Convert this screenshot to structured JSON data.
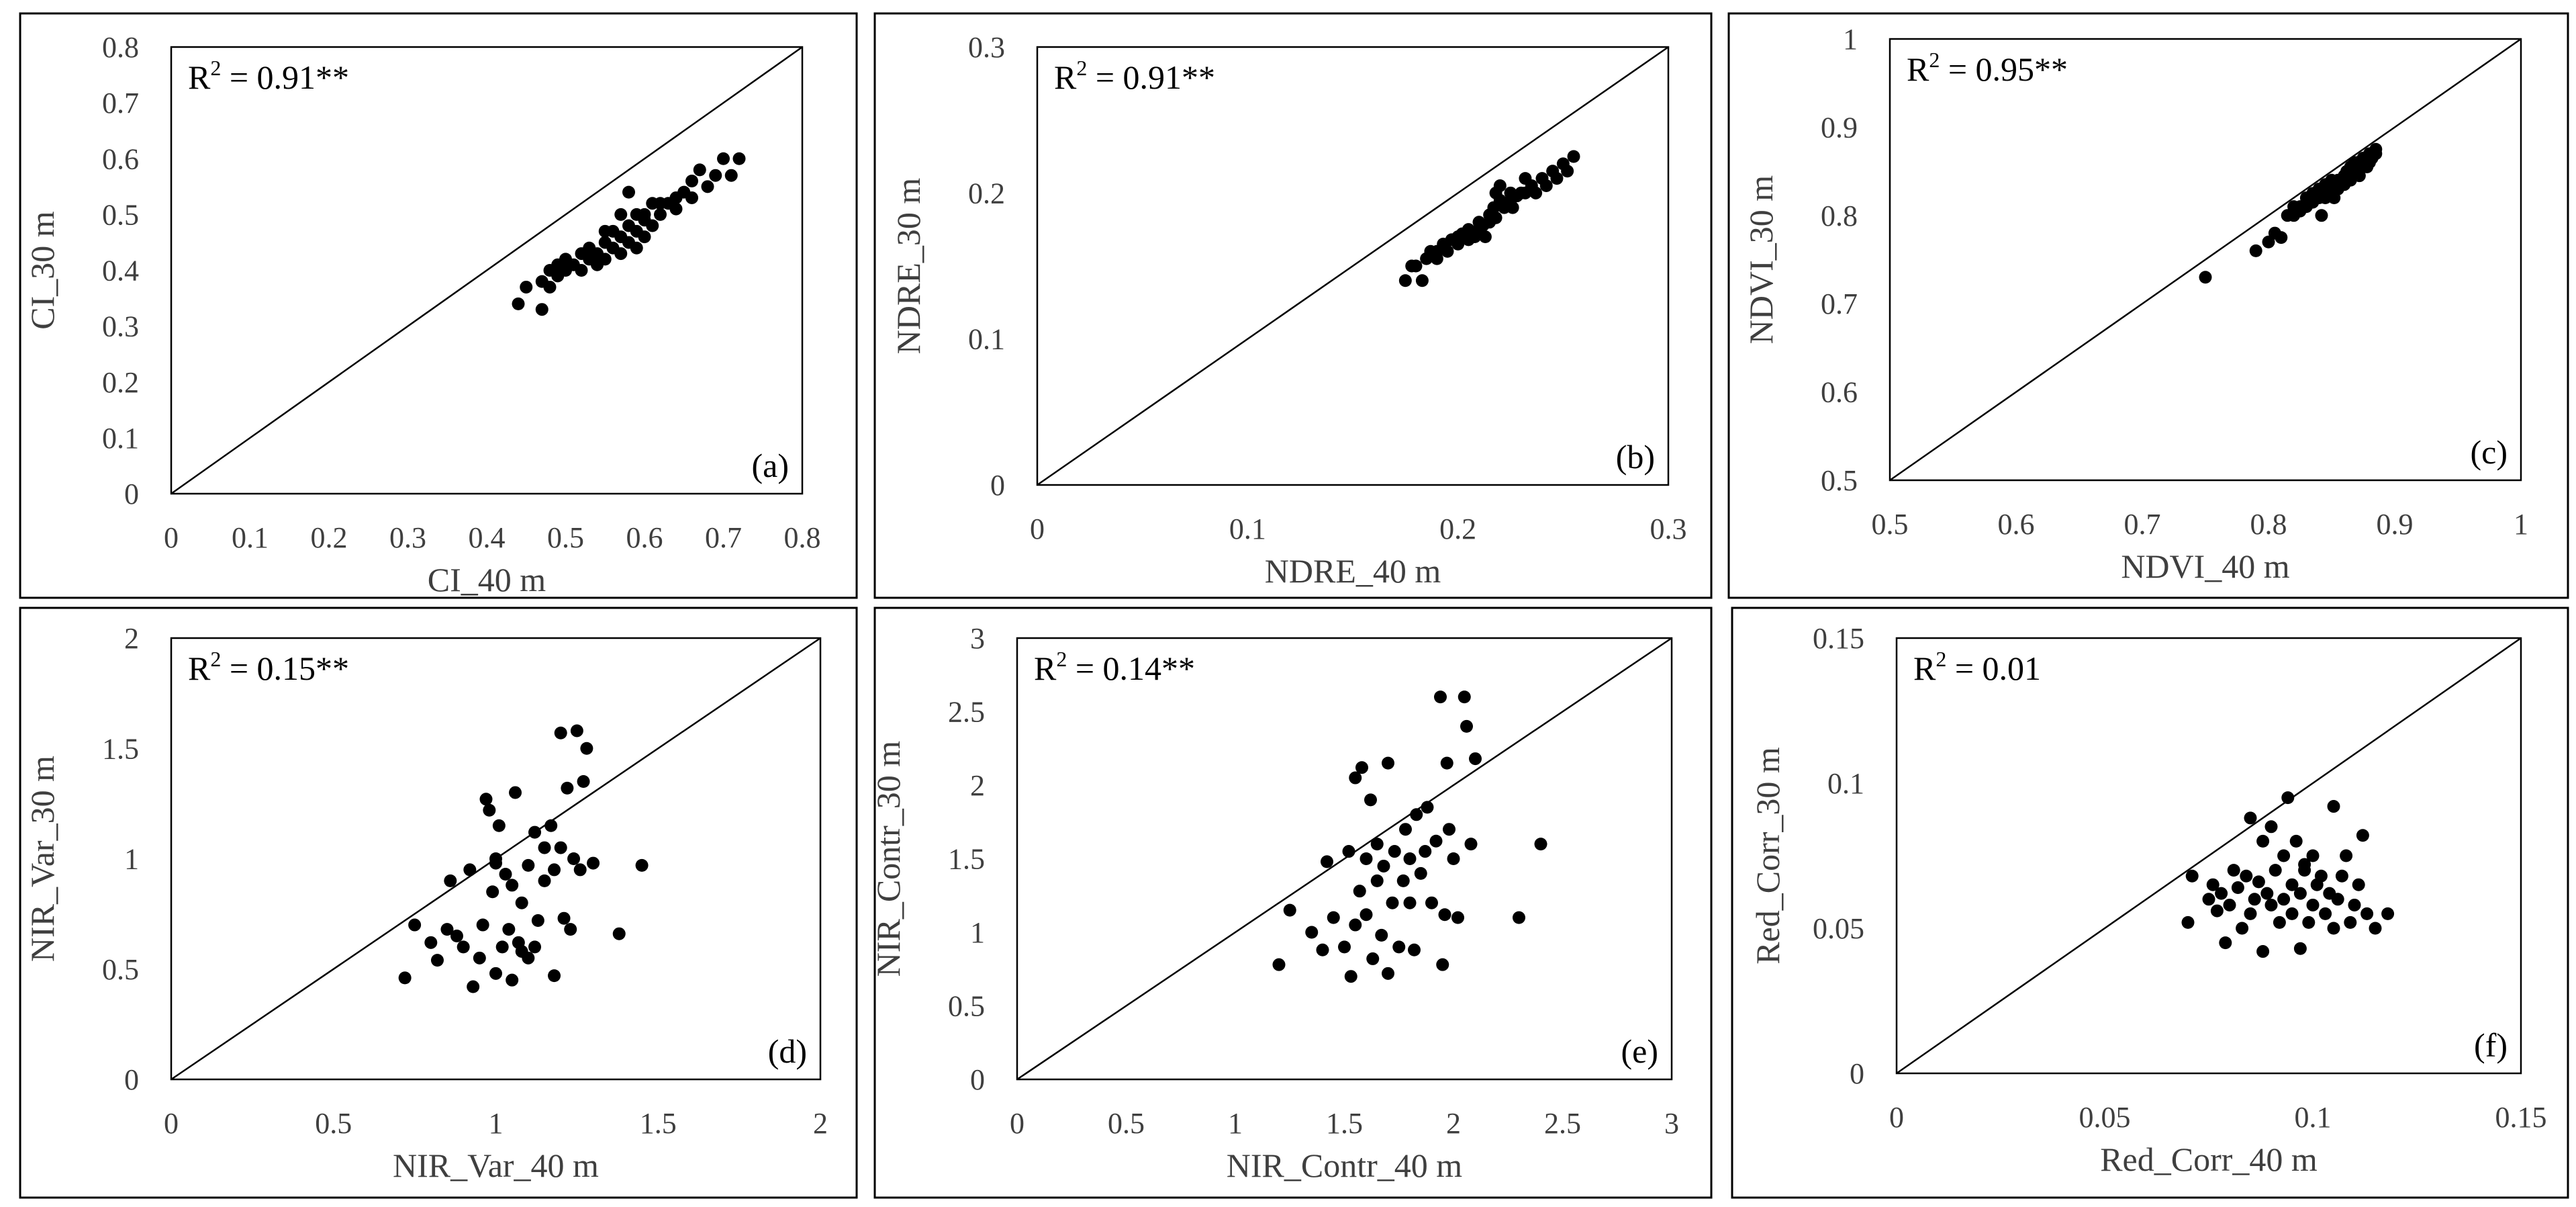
{
  "chart_data": [
    {
      "type": "scatter",
      "panel": "(a)",
      "xlabel": "CI_40 m",
      "ylabel": "CI_30 m",
      "xlim": [
        0,
        0.8
      ],
      "ylim": [
        0,
        0.8
      ],
      "xticks": [
        "0",
        "0.1",
        "0.2",
        "0.3",
        "0.4",
        "0.5",
        "0.6",
        "0.7",
        "0.8"
      ],
      "yticks": [
        "0",
        "0.1",
        "0.2",
        "0.3",
        "0.4",
        "0.5",
        "0.6",
        "0.7",
        "0.8"
      ],
      "r2": {
        "prefix": "R",
        "sup": "2",
        "value": " = 0.91**"
      },
      "one_to_one_line": true,
      "points": [
        [
          0.44,
          0.34
        ],
        [
          0.45,
          0.37
        ],
        [
          0.47,
          0.33
        ],
        [
          0.47,
          0.38
        ],
        [
          0.48,
          0.4
        ],
        [
          0.48,
          0.37
        ],
        [
          0.49,
          0.41
        ],
        [
          0.49,
          0.39
        ],
        [
          0.5,
          0.42
        ],
        [
          0.5,
          0.4
        ],
        [
          0.51,
          0.41
        ],
        [
          0.52,
          0.43
        ],
        [
          0.52,
          0.4
        ],
        [
          0.53,
          0.42
        ],
        [
          0.53,
          0.44
        ],
        [
          0.54,
          0.41
        ],
        [
          0.54,
          0.43
        ],
        [
          0.55,
          0.45
        ],
        [
          0.55,
          0.42
        ],
        [
          0.56,
          0.44
        ],
        [
          0.56,
          0.47
        ],
        [
          0.57,
          0.43
        ],
        [
          0.57,
          0.46
        ],
        [
          0.58,
          0.48
        ],
        [
          0.58,
          0.45
        ],
        [
          0.58,
          0.54
        ],
        [
          0.59,
          0.47
        ],
        [
          0.59,
          0.5
        ],
        [
          0.6,
          0.46
        ],
        [
          0.6,
          0.49
        ],
        [
          0.61,
          0.52
        ],
        [
          0.61,
          0.48
        ],
        [
          0.62,
          0.5
        ],
        [
          0.63,
          0.52
        ],
        [
          0.64,
          0.53
        ],
        [
          0.64,
          0.51
        ],
        [
          0.65,
          0.54
        ],
        [
          0.66,
          0.53
        ],
        [
          0.66,
          0.56
        ],
        [
          0.67,
          0.58
        ],
        [
          0.68,
          0.55
        ],
        [
          0.69,
          0.57
        ],
        [
          0.7,
          0.6
        ],
        [
          0.71,
          0.57
        ],
        [
          0.72,
          0.6
        ],
        [
          0.59,
          0.44
        ],
        [
          0.6,
          0.5
        ],
        [
          0.62,
          0.52
        ],
        [
          0.55,
          0.47
        ],
        [
          0.57,
          0.5
        ]
      ]
    },
    {
      "type": "scatter",
      "panel": "(b)",
      "xlabel": "NDRE_40 m",
      "ylabel": "NDRE_30 m",
      "xlim": [
        0,
        0.3
      ],
      "ylim": [
        0,
        0.3
      ],
      "xticks": [
        "0",
        "0.1",
        "0.2",
        "0.3"
      ],
      "yticks": [
        "0",
        "0.1",
        "0.2",
        "0.3"
      ],
      "r2": {
        "prefix": "R",
        "sup": "2",
        "value": " = 0.91**"
      },
      "one_to_one_line": true,
      "points": [
        [
          0.175,
          0.14
        ],
        [
          0.178,
          0.15
        ],
        [
          0.18,
          0.15
        ],
        [
          0.183,
          0.14
        ],
        [
          0.185,
          0.155
        ],
        [
          0.187,
          0.16
        ],
        [
          0.19,
          0.16
        ],
        [
          0.19,
          0.155
        ],
        [
          0.193,
          0.165
        ],
        [
          0.195,
          0.16
        ],
        [
          0.197,
          0.168
        ],
        [
          0.2,
          0.165
        ],
        [
          0.2,
          0.17
        ],
        [
          0.202,
          0.172
        ],
        [
          0.205,
          0.168
        ],
        [
          0.205,
          0.175
        ],
        [
          0.208,
          0.17
        ],
        [
          0.21,
          0.175
        ],
        [
          0.21,
          0.18
        ],
        [
          0.212,
          0.178
        ],
        [
          0.215,
          0.18
        ],
        [
          0.215,
          0.185
        ],
        [
          0.217,
          0.19
        ],
        [
          0.218,
          0.183
        ],
        [
          0.22,
          0.195
        ],
        [
          0.22,
          0.205
        ],
        [
          0.222,
          0.19
        ],
        [
          0.225,
          0.195
        ],
        [
          0.225,
          0.2
        ],
        [
          0.228,
          0.198
        ],
        [
          0.23,
          0.2
        ],
        [
          0.232,
          0.2
        ],
        [
          0.235,
          0.205
        ],
        [
          0.237,
          0.2
        ],
        [
          0.24,
          0.21
        ],
        [
          0.242,
          0.205
        ],
        [
          0.245,
          0.215
        ],
        [
          0.247,
          0.21
        ],
        [
          0.25,
          0.22
        ],
        [
          0.252,
          0.215
        ],
        [
          0.255,
          0.225
        ],
        [
          0.213,
          0.17
        ],
        [
          0.218,
          0.2
        ],
        [
          0.226,
          0.19
        ],
        [
          0.232,
          0.21
        ]
      ]
    },
    {
      "type": "scatter",
      "panel": "(c)",
      "xlabel": "NDVI_40 m",
      "ylabel": "NDVI_30 m",
      "xlim": [
        0.5,
        1
      ],
      "ylim": [
        0.5,
        1
      ],
      "xticks": [
        "0.5",
        "0.6",
        "0.7",
        "0.8",
        "0.9",
        "1"
      ],
      "yticks": [
        "0.5",
        "0.6",
        "0.7",
        "0.8",
        "0.9",
        "1"
      ],
      "r2": {
        "prefix": "R",
        "sup": "2",
        "value": " = 0.95**"
      },
      "one_to_one_line": true,
      "points": [
        [
          0.75,
          0.73
        ],
        [
          0.79,
          0.76
        ],
        [
          0.8,
          0.77
        ],
        [
          0.805,
          0.78
        ],
        [
          0.81,
          0.775
        ],
        [
          0.815,
          0.8
        ],
        [
          0.82,
          0.81
        ],
        [
          0.82,
          0.8
        ],
        [
          0.825,
          0.805
        ],
        [
          0.83,
          0.81
        ],
        [
          0.83,
          0.82
        ],
        [
          0.835,
          0.815
        ],
        [
          0.835,
          0.825
        ],
        [
          0.84,
          0.83
        ],
        [
          0.84,
          0.82
        ],
        [
          0.842,
          0.8
        ],
        [
          0.845,
          0.835
        ],
        [
          0.845,
          0.825
        ],
        [
          0.85,
          0.84
        ],
        [
          0.85,
          0.83
        ],
        [
          0.852,
          0.82
        ],
        [
          0.855,
          0.84
        ],
        [
          0.86,
          0.845
        ],
        [
          0.86,
          0.835
        ],
        [
          0.862,
          0.85
        ],
        [
          0.865,
          0.84
        ],
        [
          0.865,
          0.855
        ],
        [
          0.87,
          0.85
        ],
        [
          0.87,
          0.86
        ],
        [
          0.872,
          0.845
        ],
        [
          0.875,
          0.86
        ],
        [
          0.875,
          0.865
        ],
        [
          0.878,
          0.855
        ],
        [
          0.88,
          0.87
        ],
        [
          0.88,
          0.86
        ],
        [
          0.882,
          0.865
        ],
        [
          0.885,
          0.87
        ],
        [
          0.885,
          0.875
        ],
        [
          0.855,
          0.83
        ],
        [
          0.845,
          0.82
        ],
        [
          0.825,
          0.81
        ],
        [
          0.868,
          0.86
        ]
      ]
    },
    {
      "type": "scatter",
      "panel": "(d)",
      "xlabel": "NIR_Var_40 m",
      "ylabel": "NIR_Var_30 m",
      "xlim": [
        0,
        2
      ],
      "ylim": [
        0,
        2
      ],
      "xticks": [
        "0",
        "0.5",
        "1",
        "1.5",
        "2"
      ],
      "yticks": [
        "0",
        "0.5",
        "1",
        "1.5",
        "2"
      ],
      "r2": {
        "prefix": "R",
        "sup": "2",
        "value": " = 0.15**"
      },
      "one_to_one_line": true,
      "points": [
        [
          0.72,
          0.46
        ],
        [
          0.75,
          0.7
        ],
        [
          0.8,
          0.62
        ],
        [
          0.82,
          0.54
        ],
        [
          0.85,
          0.68
        ],
        [
          0.86,
          0.9
        ],
        [
          0.88,
          0.65
        ],
        [
          0.9,
          0.6
        ],
        [
          0.92,
          0.95
        ],
        [
          0.93,
          0.42
        ],
        [
          0.95,
          0.55
        ],
        [
          0.96,
          0.7
        ],
        [
          0.97,
          1.27
        ],
        [
          0.98,
          1.22
        ],
        [
          0.99,
          0.85
        ],
        [
          1.0,
          1.0
        ],
        [
          1.0,
          0.48
        ],
        [
          1.01,
          1.15
        ],
        [
          1.02,
          0.6
        ],
        [
          1.03,
          0.93
        ],
        [
          1.04,
          0.68
        ],
        [
          1.05,
          0.88
        ],
        [
          1.05,
          0.45
        ],
        [
          1.06,
          1.3
        ],
        [
          1.07,
          0.62
        ],
        [
          1.08,
          0.8
        ],
        [
          1.1,
          0.55
        ],
        [
          1.1,
          0.97
        ],
        [
          1.12,
          1.12
        ],
        [
          1.12,
          0.6
        ],
        [
          1.13,
          0.72
        ],
        [
          1.15,
          1.05
        ],
        [
          1.15,
          0.9
        ],
        [
          1.17,
          1.15
        ],
        [
          1.18,
          0.95
        ],
        [
          1.18,
          0.47
        ],
        [
          1.2,
          1.57
        ],
        [
          1.2,
          1.05
        ],
        [
          1.21,
          0.73
        ],
        [
          1.22,
          1.32
        ],
        [
          1.23,
          0.68
        ],
        [
          1.24,
          1.0
        ],
        [
          1.25,
          1.58
        ],
        [
          1.26,
          0.95
        ],
        [
          1.27,
          1.35
        ],
        [
          1.28,
          1.5
        ],
        [
          1.3,
          0.98
        ],
        [
          1.38,
          0.66
        ],
        [
          1.45,
          0.97
        ],
        [
          1.0,
          0.98
        ],
        [
          1.08,
          0.58
        ]
      ]
    },
    {
      "type": "scatter",
      "panel": "(e)",
      "xlabel": "NIR_Contr_40 m",
      "ylabel": "NIR_Contr_30 m",
      "xlim": [
        0,
        3
      ],
      "ylim": [
        0,
        3
      ],
      "xticks": [
        "0",
        "0.5",
        "1",
        "1.5",
        "2",
        "2.5",
        "3"
      ],
      "yticks": [
        "0",
        "0.5",
        "1",
        "1.5",
        "2",
        "2.5",
        "3"
      ],
      "r2": {
        "prefix": "R",
        "sup": "2",
        "value": " = 0.14**"
      },
      "one_to_one_line": true,
      "points": [
        [
          1.2,
          0.78
        ],
        [
          1.25,
          1.15
        ],
        [
          1.35,
          1.0
        ],
        [
          1.4,
          0.88
        ],
        [
          1.42,
          1.48
        ],
        [
          1.45,
          1.1
        ],
        [
          1.5,
          0.9
        ],
        [
          1.52,
          1.55
        ],
        [
          1.53,
          0.7
        ],
        [
          1.55,
          2.05
        ],
        [
          1.57,
          1.28
        ],
        [
          1.58,
          2.12
        ],
        [
          1.6,
          1.5
        ],
        [
          1.6,
          1.12
        ],
        [
          1.62,
          1.9
        ],
        [
          1.63,
          0.82
        ],
        [
          1.65,
          1.6
        ],
        [
          1.65,
          1.35
        ],
        [
          1.67,
          0.98
        ],
        [
          1.68,
          1.45
        ],
        [
          1.7,
          2.15
        ],
        [
          1.7,
          0.72
        ],
        [
          1.72,
          1.2
        ],
        [
          1.73,
          1.55
        ],
        [
          1.75,
          0.9
        ],
        [
          1.77,
          1.35
        ],
        [
          1.78,
          1.7
        ],
        [
          1.8,
          1.2
        ],
        [
          1.82,
          0.88
        ],
        [
          1.83,
          1.8
        ],
        [
          1.85,
          1.4
        ],
        [
          1.87,
          1.55
        ],
        [
          1.88,
          1.85
        ],
        [
          1.9,
          1.2
        ],
        [
          1.92,
          1.62
        ],
        [
          1.94,
          2.6
        ],
        [
          1.95,
          0.78
        ],
        [
          1.96,
          1.12
        ],
        [
          1.97,
          2.15
        ],
        [
          1.98,
          1.7
        ],
        [
          2.0,
          1.5
        ],
        [
          2.02,
          1.1
        ],
        [
          2.05,
          2.6
        ],
        [
          2.06,
          2.4
        ],
        [
          2.08,
          1.6
        ],
        [
          2.1,
          2.18
        ],
        [
          2.3,
          1.1
        ],
        [
          2.4,
          1.6
        ],
        [
          1.55,
          1.05
        ],
        [
          1.8,
          1.5
        ]
      ]
    },
    {
      "type": "scatter",
      "panel": "(f)",
      "xlabel": "Red_Corr_40 m",
      "ylabel": "Red_Corr_30 m",
      "xlim": [
        0,
        0.15
      ],
      "ylim": [
        0,
        0.15
      ],
      "xticks": [
        "0",
        "0.05",
        "0.1",
        "0.15"
      ],
      "yticks": [
        "0",
        "0.05",
        "0.1",
        "0.15"
      ],
      "r2": {
        "prefix": "R",
        "sup": "2",
        "value": " = 0.01"
      },
      "one_to_one_line": true,
      "points": [
        [
          0.07,
          0.052
        ],
        [
          0.071,
          0.068
        ],
        [
          0.075,
          0.06
        ],
        [
          0.076,
          0.065
        ],
        [
          0.077,
          0.056
        ],
        [
          0.078,
          0.062
        ],
        [
          0.079,
          0.045
        ],
        [
          0.08,
          0.058
        ],
        [
          0.081,
          0.07
        ],
        [
          0.082,
          0.064
        ],
        [
          0.083,
          0.05
        ],
        [
          0.084,
          0.068
        ],
        [
          0.085,
          0.088
        ],
        [
          0.085,
          0.055
        ],
        [
          0.086,
          0.06
        ],
        [
          0.087,
          0.066
        ],
        [
          0.088,
          0.08
        ],
        [
          0.088,
          0.042
        ],
        [
          0.089,
          0.062
        ],
        [
          0.09,
          0.058
        ],
        [
          0.09,
          0.085
        ],
        [
          0.091,
          0.07
        ],
        [
          0.092,
          0.052
        ],
        [
          0.093,
          0.06
        ],
        [
          0.093,
          0.075
        ],
        [
          0.094,
          0.095
        ],
        [
          0.095,
          0.065
        ],
        [
          0.095,
          0.055
        ],
        [
          0.096,
          0.08
        ],
        [
          0.097,
          0.043
        ],
        [
          0.097,
          0.062
        ],
        [
          0.098,
          0.072
        ],
        [
          0.099,
          0.052
        ],
        [
          0.1,
          0.058
        ],
        [
          0.1,
          0.075
        ],
        [
          0.101,
          0.065
        ],
        [
          0.102,
          0.068
        ],
        [
          0.103,
          0.055
        ],
        [
          0.104,
          0.062
        ],
        [
          0.105,
          0.092
        ],
        [
          0.105,
          0.05
        ],
        [
          0.106,
          0.06
        ],
        [
          0.107,
          0.068
        ],
        [
          0.108,
          0.075
        ],
        [
          0.109,
          0.052
        ],
        [
          0.11,
          0.058
        ],
        [
          0.111,
          0.065
        ],
        [
          0.112,
          0.082
        ],
        [
          0.113,
          0.055
        ],
        [
          0.115,
          0.05
        ],
        [
          0.118,
          0.055
        ],
        [
          0.098,
          0.07
        ]
      ]
    }
  ]
}
